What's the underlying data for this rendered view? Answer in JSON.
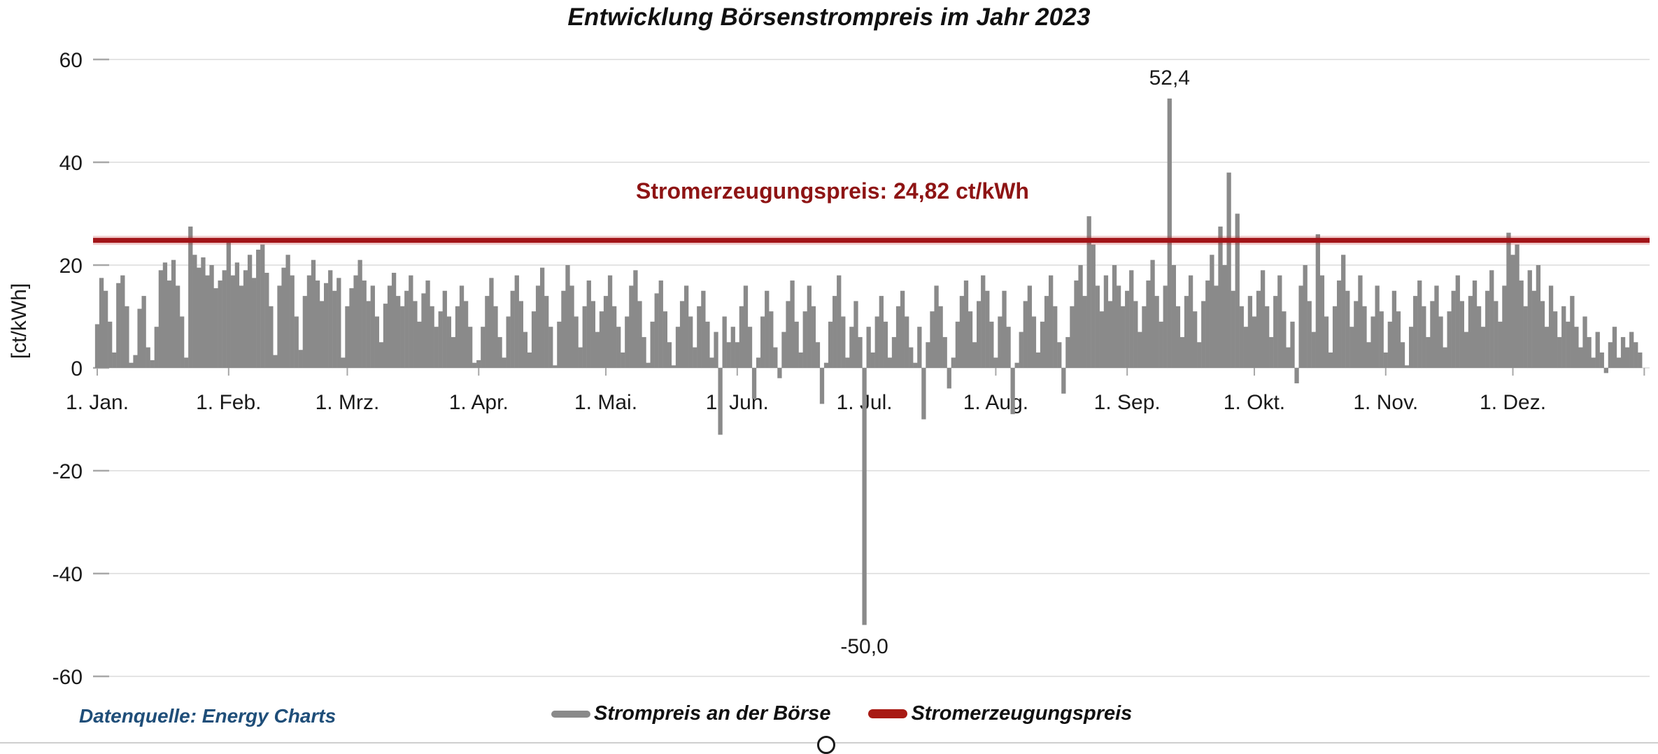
{
  "title": "Entwicklung Börsenstrompreis im Jahr 2023",
  "y_axis_label": "[ct/kWh]",
  "threshold_label": "Stromerzeugungspreis: 24,82 ct/kWh",
  "annotations": {
    "max": "52,4",
    "min": "-50,0"
  },
  "source": "Datenquelle: Energy Charts",
  "legend": {
    "series": "Strompreis an der Börse",
    "threshold": "Stromerzeugungspreis"
  },
  "colors": {
    "bars": "#8a8a8a",
    "threshold_line": "#a21418",
    "threshold_halo": "rgba(190,30,30,0.22)",
    "threshold_text": "#8e1414",
    "grid": "#dcdcdc",
    "tick": "#a8a8a8",
    "text": "#1a1a1a",
    "source_text": "#1f4e79"
  },
  "chart_data": {
    "type": "bar",
    "title": "Entwicklung Börsenstrompreis im Jahr 2023",
    "xlabel": "",
    "ylabel": "[ct/kWh]",
    "ylim": [
      -60,
      60
    ],
    "grid": true,
    "legend_position": "bottom",
    "y_ticks": [
      60,
      40,
      20,
      0,
      -20,
      -40,
      -60
    ],
    "x_tick_labels": [
      "1. Jan.",
      "1. Feb.",
      "1. Mrz.",
      "1. Apr.",
      "1. Mai.",
      "1. Jun.",
      "1. Jul.",
      "1. Aug.",
      "1. Sep.",
      "1. Okt.",
      "1. Nov.",
      "1. Dez."
    ],
    "month_start_days": [
      0,
      31,
      59,
      90,
      120,
      151,
      181,
      212,
      243,
      273,
      304,
      334
    ],
    "threshold": {
      "name": "Stromerzeugungspreis",
      "value": 24.82,
      "unit": "ct/kWh"
    },
    "annotated_points": {
      "max": {
        "label": "52,4",
        "value": 52.4,
        "day_index": 253
      },
      "min": {
        "label": "-50,0",
        "value": -50.0,
        "day_index": 181
      }
    },
    "series": [
      {
        "name": "Strompreis an der Börse",
        "unit": "ct/kWh",
        "granularity": "daily",
        "year": 2023,
        "values": [
          8.5,
          17.5,
          15,
          9,
          3,
          16.5,
          18,
          12,
          1,
          2.5,
          11.5,
          14,
          4,
          1.5,
          8,
          19,
          20.5,
          17,
          21,
          16,
          10,
          2,
          27.5,
          22,
          19.5,
          21.5,
          18,
          20,
          15.5,
          17,
          19,
          24.5,
          18,
          20.5,
          16,
          19,
          22,
          17.5,
          23,
          24,
          18.5,
          12,
          2.5,
          16,
          19.5,
          22,
          18,
          10,
          3.5,
          14,
          18,
          21,
          17,
          13,
          16.5,
          19,
          15,
          17.5,
          2,
          12,
          15.5,
          18,
          21,
          17,
          13,
          16,
          10,
          5,
          12.5,
          16,
          18.5,
          14,
          12,
          15,
          18,
          13,
          9,
          14.5,
          17,
          12,
          8,
          11,
          15,
          10,
          6,
          12,
          16,
          13,
          8,
          1,
          1.5,
          8,
          14,
          17.5,
          12,
          6,
          2,
          10,
          15,
          18,
          13,
          7,
          3,
          11,
          16,
          19.5,
          14,
          8,
          0.5,
          9,
          15,
          20,
          16,
          10,
          4,
          12,
          17,
          13,
          7,
          11,
          14,
          18,
          12,
          8,
          3,
          10,
          16,
          19,
          13,
          6,
          1,
          9,
          14.5,
          17,
          11,
          5,
          0.5,
          8,
          13,
          16,
          10,
          4,
          12,
          15,
          9,
          2,
          7,
          -13,
          10,
          5,
          8,
          5,
          12,
          16,
          8,
          -6,
          2,
          10,
          15,
          11,
          4,
          -2,
          7,
          13,
          17,
          9,
          3,
          11,
          16,
          12,
          5,
          -7,
          1,
          9,
          14,
          18,
          10,
          2,
          8,
          13,
          6,
          -50,
          8,
          3,
          10,
          14,
          9,
          2,
          6,
          12,
          15,
          10,
          4,
          1,
          8,
          -10,
          5,
          11,
          16,
          12,
          6,
          -4,
          2,
          9,
          14,
          17,
          11,
          5,
          13,
          18,
          15,
          9,
          2,
          10,
          15,
          8,
          -9,
          1,
          7,
          13,
          16,
          10,
          3,
          9,
          14,
          18,
          12,
          5,
          -5,
          6,
          12,
          17,
          20,
          14,
          29.5,
          24,
          16,
          11,
          18,
          13,
          20,
          16,
          12,
          15,
          19,
          13,
          7,
          12,
          17,
          21,
          14,
          9,
          16,
          52.4,
          20,
          12,
          6,
          14,
          18,
          11,
          5,
          13,
          17,
          22,
          16,
          27.5,
          20,
          38,
          15,
          30,
          12,
          8,
          14,
          10,
          15,
          19,
          12,
          6,
          14,
          18,
          11,
          4,
          9,
          -3,
          16,
          20,
          13,
          7,
          26,
          18,
          10,
          3,
          12,
          17,
          22,
          15,
          8,
          13,
          18,
          12,
          5,
          10,
          16,
          11,
          3,
          9,
          15,
          11,
          5,
          0.5,
          8,
          14,
          17,
          12,
          6,
          13,
          16,
          10,
          4,
          11,
          15,
          18,
          13,
          7,
          14,
          17,
          12,
          8,
          15,
          19,
          13,
          9,
          16,
          26.3,
          22,
          24,
          17,
          12,
          19,
          15,
          20,
          13,
          8,
          16,
          11,
          6,
          12,
          9,
          14,
          8,
          4,
          10,
          6,
          2,
          7,
          3,
          -1,
          5,
          8,
          2,
          6,
          4,
          7,
          5,
          3
        ]
      }
    ]
  }
}
